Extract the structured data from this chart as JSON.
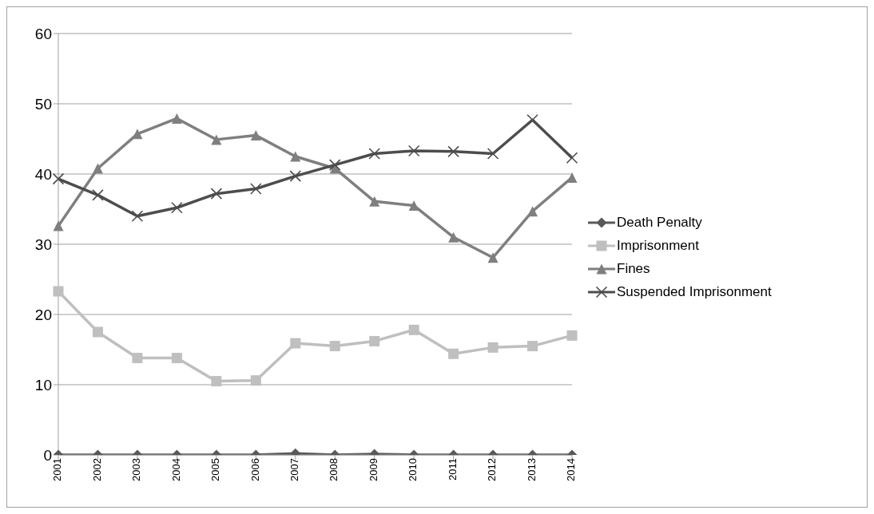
{
  "chart_data": {
    "type": "line",
    "categories": [
      "2001",
      "2002",
      "2003",
      "2004",
      "2005",
      "2006",
      "2007",
      "2008",
      "2009",
      "2010",
      "2011",
      "2012",
      "2013",
      "2014"
    ],
    "series": [
      {
        "name": "Death Penalty",
        "color": "#595959",
        "marker": "diamond",
        "values": [
          0,
          0,
          0,
          0,
          0,
          0,
          0.2,
          0,
          0.1,
          0,
          0,
          0,
          0,
          0
        ]
      },
      {
        "name": "Imprisonment",
        "color": "#bfbfbf",
        "marker": "square",
        "values": [
          23.3,
          17.5,
          13.8,
          13.8,
          10.5,
          10.6,
          15.9,
          15.5,
          16.2,
          17.8,
          14.4,
          15.3,
          15.5,
          17.0
        ]
      },
      {
        "name": "Fines",
        "color": "#7f7f7f",
        "marker": "triangle",
        "values": [
          32.6,
          40.8,
          45.7,
          47.9,
          44.9,
          45.5,
          42.5,
          40.8,
          36.1,
          35.5,
          31.0,
          28.1,
          34.7,
          39.5
        ]
      },
      {
        "name": "Suspended Imprisonment",
        "color": "#4d4d4d",
        "marker": "cross",
        "values": [
          39.3,
          37.0,
          34.0,
          35.2,
          37.2,
          37.9,
          39.7,
          41.3,
          42.9,
          43.3,
          43.2,
          42.9,
          47.7,
          42.3
        ]
      }
    ],
    "ylim": [
      0,
      60
    ],
    "yticks": [
      0,
      10,
      20,
      30,
      40,
      50,
      60
    ],
    "grid": "y",
    "legend": "right",
    "line_style": "solid"
  }
}
